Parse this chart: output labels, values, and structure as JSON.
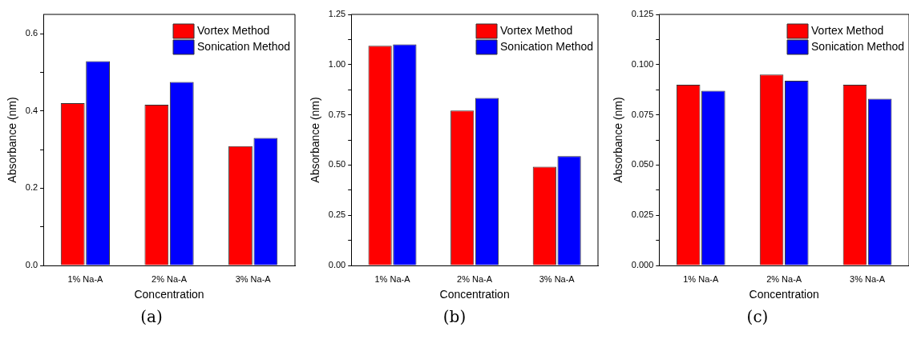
{
  "chart_data": [
    {
      "type": "bar",
      "xlabel": "Concentration",
      "ylabel": "Absorbance (nm)",
      "categories": [
        "1% Na-A",
        "2% Na-A",
        "3% Na-A"
      ],
      "series": [
        {
          "name": "Vortex Method",
          "color": "#ff0000",
          "values": [
            0.42,
            0.416,
            0.309
          ]
        },
        {
          "name": "Sonication Method",
          "color": "#0000ff",
          "values": [
            0.529,
            0.475,
            0.33
          ]
        }
      ],
      "ylim": [
        0,
        0.65
      ],
      "yticks": [
        {
          "value": 0,
          "label": "0.0"
        },
        {
          "value": 0.1,
          "label": null
        },
        0.2,
        {
          "value": 0.3,
          "label": null
        },
        0.4,
        {
          "value": 0.5,
          "label": null
        },
        0.6
      ],
      "grid": false,
      "legend": "top right",
      "annotations": [
        "(a)"
      ]
    },
    {
      "type": "bar",
      "xlabel": "Concentration",
      "ylabel": "Absorbance (nm)",
      "categories": [
        "1% Na-A",
        "2% Na-A",
        "3% Na-A"
      ],
      "series": [
        {
          "name": "Vortex Method",
          "color": "#ff0000",
          "values": [
            1.094,
            0.771,
            0.492
          ]
        },
        {
          "name": "Sonication Method",
          "color": "#0000ff",
          "values": [
            1.101,
            0.834,
            0.544
          ]
        }
      ],
      "ylim": [
        0,
        1.25
      ],
      "yticks": [
        {
          "value": 0,
          "label": "0.00"
        },
        {
          "value": 0.125,
          "label": null
        },
        {
          "value": 0.25,
          "label": "0.25"
        },
        {
          "value": 0.375,
          "label": null
        },
        {
          "value": 0.5,
          "label": "0.50"
        },
        {
          "value": 0.625,
          "label": null
        },
        {
          "value": 0.75,
          "label": "0.75"
        },
        {
          "value": 0.875,
          "label": null
        },
        {
          "value": 1,
          "label": "1.00"
        },
        {
          "value": 1.125,
          "label": null
        },
        {
          "value": 1.25,
          "label": "1.25"
        }
      ],
      "grid": false,
      "legend": "top right",
      "annotations": [
        "(b)"
      ]
    },
    {
      "type": "bar",
      "xlabel": "Concentration",
      "ylabel": "Absorbance (nm)",
      "categories": [
        "1% Na-A",
        "2% Na-A",
        "3% Na-A"
      ],
      "series": [
        {
          "name": "Vortex Method",
          "color": "#ff0000",
          "values": [
            0.09,
            0.095,
            0.09
          ]
        },
        {
          "name": "Sonication Method",
          "color": "#0000ff",
          "values": [
            0.087,
            0.092,
            0.083
          ]
        }
      ],
      "ylim": [
        0,
        0.125
      ],
      "yticks": [
        {
          "value": 0,
          "label": "0.000"
        },
        {
          "value": 0.0125,
          "label": null
        },
        {
          "value": 0.025,
          "label": "0.025"
        },
        {
          "value": 0.0375,
          "label": null
        },
        {
          "value": 0.05,
          "label": "0.050"
        },
        {
          "value": 0.0625,
          "label": null
        },
        {
          "value": 0.075,
          "label": "0.075"
        },
        {
          "value": 0.0875,
          "label": null
        },
        {
          "value": 0.1,
          "label": "0.100"
        },
        {
          "value": 0.1125,
          "label": null
        },
        {
          "value": 0.125,
          "label": "0.125"
        }
      ],
      "grid": false,
      "legend": "top right",
      "annotations": [
        "(c)"
      ]
    }
  ]
}
